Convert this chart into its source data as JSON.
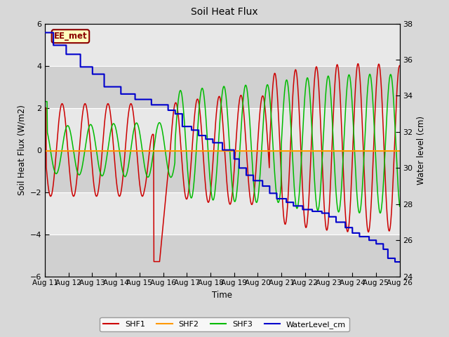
{
  "title": "Soil Heat Flux",
  "xlabel": "Time",
  "ylabel_left": "Soil Heat Flux (W/m2)",
  "ylabel_right": "Water level (cm)",
  "annotation": "EE_met",
  "ylim_left": [
    -6,
    6
  ],
  "ylim_right": [
    24,
    38
  ],
  "xlim": [
    0,
    15
  ],
  "x_tick_labels": [
    "Aug 11",
    "Aug 12",
    "Aug 13",
    "Aug 14",
    "Aug 15",
    "Aug 16",
    "Aug 17",
    "Aug 18",
    "Aug 19",
    "Aug 20",
    "Aug 21",
    "Aug 22",
    "Aug 23",
    "Aug 24",
    "Aug 25",
    "Aug 26"
  ],
  "shf1_color": "#cc0000",
  "shf2_color": "#ff9900",
  "shf3_color": "#00bb00",
  "wl_color": "#0000cc",
  "bg_color": "#d8d8d8",
  "plot_bg_color": "#e8e8e8",
  "band_light": "#e8e8e8",
  "band_dark": "#d0d0d0",
  "legend_items": [
    "SHF1",
    "SHF2",
    "SHF3",
    "WaterLevel_cm"
  ],
  "figsize": [
    6.4,
    4.8
  ],
  "dpi": 100
}
